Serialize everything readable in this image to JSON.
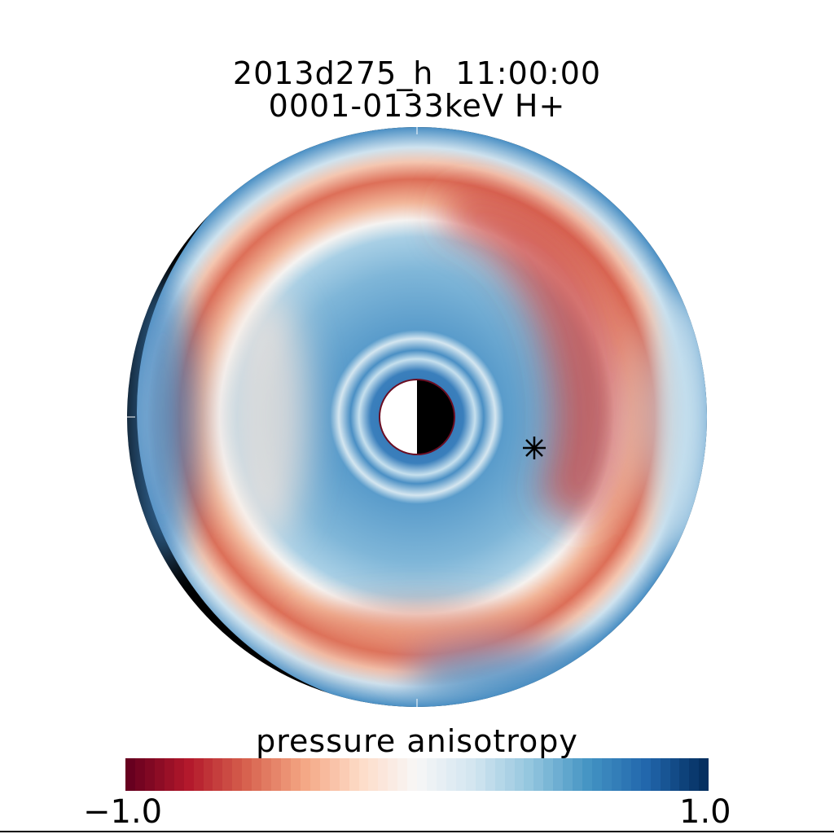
{
  "chart_data": {
    "type": "heatmap",
    "projection": "polar equatorial plane, dayside right",
    "title": [
      "2013d275_h  11:00:00",
      "0001-0133keV H+"
    ],
    "colorbar": {
      "label": "pressure anisotropy",
      "min_label": "−1.0",
      "max_label": "1.0",
      "range": [
        -1.0,
        1.0
      ],
      "colormap": "red-white-blue",
      "colors": {
        "min": "#67001f",
        "mid": "#f7f7f7",
        "max": "#053061"
      }
    },
    "marker": "asterisk",
    "pattern": "blue inner region with concentric rings, red ring strongest at dusk/noon side, blue outer boundary"
  }
}
